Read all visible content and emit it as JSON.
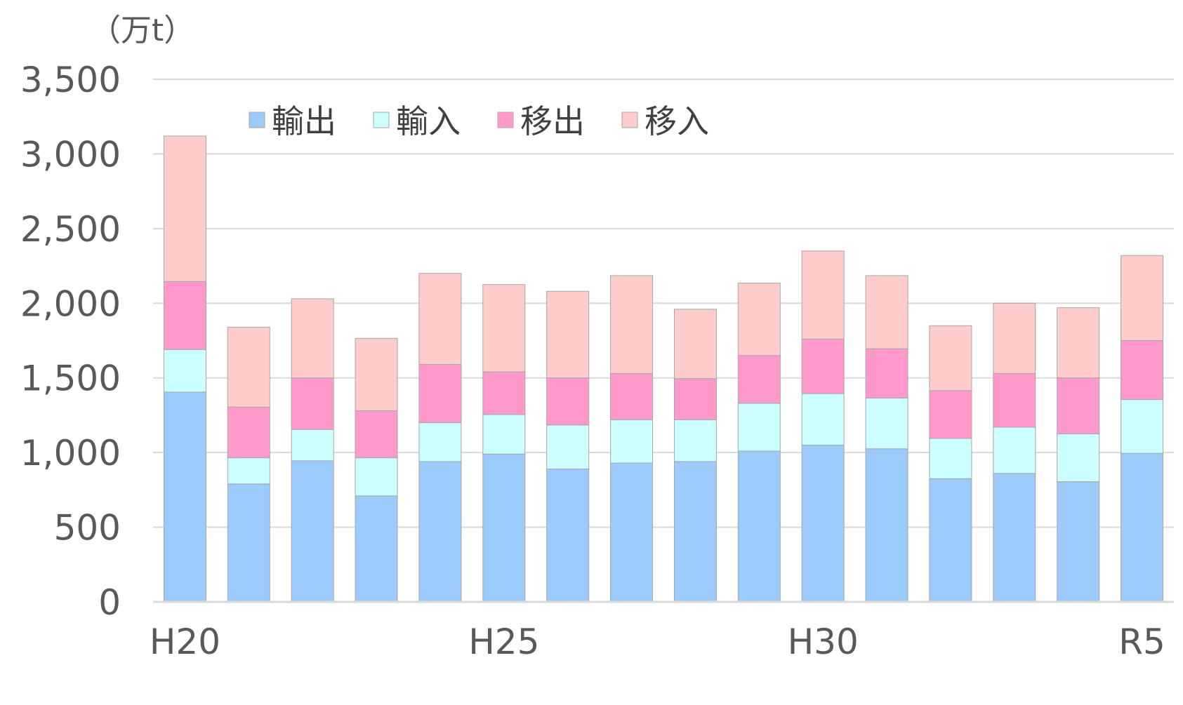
{
  "chart_data": {
    "type": "bar",
    "stacked": true,
    "title": "",
    "xlabel": "",
    "ylabel": "",
    "unit_label": "（万t）",
    "categories": [
      "H20",
      "H21",
      "H22",
      "H23",
      "H24",
      "H25",
      "H26",
      "H27",
      "H28",
      "H29",
      "H30",
      "R1",
      "R2",
      "R3",
      "R4",
      "R5"
    ],
    "x_tick_labels": [
      "H20",
      "",
      "",
      "",
      "",
      "H25",
      "",
      "",
      "",
      "",
      "H30",
      "",
      "",
      "",
      "",
      "R5"
    ],
    "y_ticks": [
      "0",
      "500",
      "1,000",
      "1,500",
      "2,000",
      "2,500",
      "3,000",
      "3,500"
    ],
    "ylim": [
      0,
      3500
    ],
    "grid": true,
    "legend_position": "top",
    "series": [
      {
        "name": "輸出",
        "color": "#9ccbfb",
        "values": [
          1405,
          790,
          945,
          710,
          940,
          990,
          890,
          930,
          940,
          1010,
          1050,
          1025,
          825,
          860,
          805,
          995
        ]
      },
      {
        "name": "輸入",
        "color": "#ccffff",
        "values": [
          285,
          175,
          210,
          255,
          260,
          265,
          295,
          290,
          280,
          320,
          345,
          340,
          270,
          310,
          320,
          360
        ]
      },
      {
        "name": "移出",
        "color": "#ff99cc",
        "values": [
          455,
          340,
          345,
          315,
          390,
          285,
          315,
          310,
          275,
          320,
          365,
          330,
          320,
          360,
          375,
          395
        ]
      },
      {
        "name": "移入",
        "color": "#ffcccc",
        "values": [
          975,
          535,
          530,
          485,
          610,
          585,
          580,
          655,
          465,
          485,
          590,
          490,
          435,
          470,
          470,
          570
        ]
      }
    ]
  }
}
